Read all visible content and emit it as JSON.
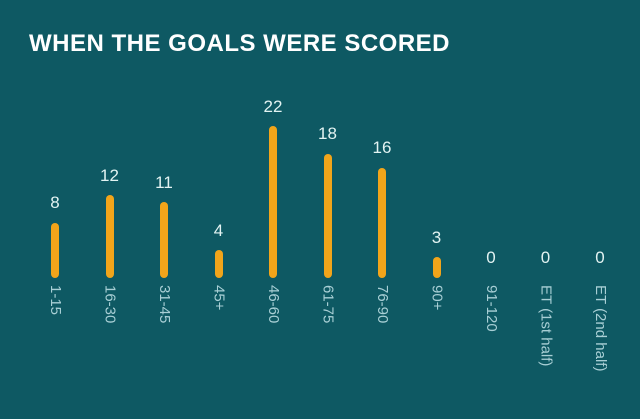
{
  "title": "WHEN THE GOALS WERE SCORED",
  "colors": {
    "background": "#0e5963",
    "bar": "#f2a51a",
    "title_text": "#ffffff",
    "value_label_text": "#e2f3f2",
    "axis_label_text": "#a8cfd5"
  },
  "chart_data": {
    "type": "bar",
    "title": "WHEN THE GOALS WERE SCORED",
    "categories": [
      "1-15",
      "16-30",
      "31-45",
      "45+",
      "46-60",
      "61-75",
      "76-90",
      "90+",
      "91-120",
      "ET (1st half)",
      "ET (2nd half)"
    ],
    "values": [
      8,
      12,
      11,
      4,
      22,
      18,
      16,
      3,
      0,
      0,
      0
    ],
    "xlabel": "",
    "ylabel": "",
    "ylim": [
      0,
      22
    ],
    "grid": false,
    "legend_position": "none",
    "value_labels_shown": true,
    "x_tick_rotation_deg": 90,
    "bar_shape": "thin-rounded-lollipop"
  }
}
